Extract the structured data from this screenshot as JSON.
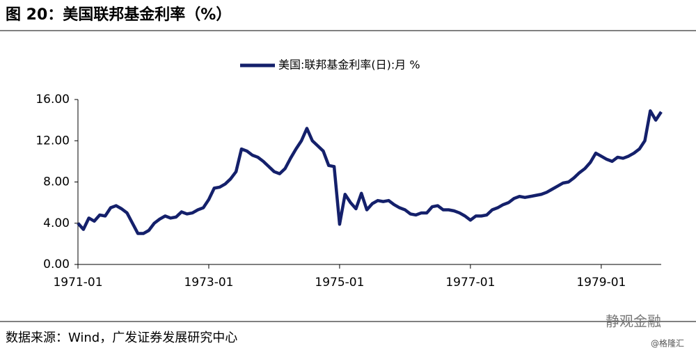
{
  "header": {
    "title": "图 20：美国联邦基金利率（%）"
  },
  "chart_data": {
    "type": "line",
    "x": [
      "1971-01",
      "1971-02",
      "1971-03",
      "1971-04",
      "1971-05",
      "1971-06",
      "1971-07",
      "1971-08",
      "1971-09",
      "1971-10",
      "1971-11",
      "1971-12",
      "1972-01",
      "1972-02",
      "1972-03",
      "1972-04",
      "1972-05",
      "1972-06",
      "1972-07",
      "1972-08",
      "1972-09",
      "1972-10",
      "1972-11",
      "1972-12",
      "1973-01",
      "1973-02",
      "1973-03",
      "1973-04",
      "1973-05",
      "1973-06",
      "1973-07",
      "1973-08",
      "1973-09",
      "1973-10",
      "1973-11",
      "1973-12",
      "1974-01",
      "1974-02",
      "1974-03",
      "1974-04",
      "1974-05",
      "1974-06",
      "1974-07",
      "1974-08",
      "1974-09",
      "1974-10",
      "1974-11",
      "1974-12",
      "1975-01",
      "1975-02",
      "1975-03",
      "1975-04",
      "1975-05",
      "1975-06",
      "1975-07",
      "1975-08",
      "1975-09",
      "1975-10",
      "1975-11",
      "1975-12",
      "1976-01",
      "1976-02",
      "1976-03",
      "1976-04",
      "1976-05",
      "1976-06",
      "1976-07",
      "1976-08",
      "1976-09",
      "1976-10",
      "1976-11",
      "1976-12",
      "1977-01",
      "1977-02",
      "1977-03",
      "1977-04",
      "1977-05",
      "1977-06",
      "1977-07",
      "1977-08",
      "1977-09",
      "1977-10",
      "1977-11",
      "1977-12",
      "1978-01",
      "1978-02",
      "1978-03",
      "1978-04",
      "1978-05",
      "1978-06",
      "1978-07",
      "1978-08",
      "1978-09",
      "1978-10",
      "1978-11",
      "1978-12",
      "1979-01",
      "1979-02",
      "1979-03",
      "1979-04",
      "1979-05",
      "1979-06",
      "1979-07",
      "1979-08",
      "1979-09",
      "1979-10",
      "1979-11",
      "1979-12"
    ],
    "series": [
      {
        "name": "美国:联邦基金利率(日):月 %",
        "color": "#14206b",
        "values": [
          4.0,
          3.4,
          4.5,
          4.2,
          4.8,
          4.7,
          5.5,
          5.7,
          5.4,
          5.0,
          4.0,
          3.0,
          3.0,
          3.3,
          4.0,
          4.4,
          4.7,
          4.5,
          4.6,
          5.1,
          4.9,
          5.0,
          5.3,
          5.5,
          6.3,
          7.4,
          7.5,
          7.8,
          8.3,
          9.0,
          11.2,
          11.0,
          10.6,
          10.4,
          10.0,
          9.5,
          9.0,
          8.8,
          9.3,
          10.3,
          11.2,
          12.0,
          13.2,
          12.0,
          11.5,
          11.0,
          9.6,
          9.5,
          3.9,
          6.8,
          6.0,
          5.4,
          6.9,
          5.3,
          5.9,
          6.2,
          6.1,
          6.2,
          5.8,
          5.5,
          5.3,
          4.9,
          4.8,
          5.0,
          5.0,
          5.6,
          5.7,
          5.3,
          5.3,
          5.2,
          5.0,
          4.7,
          4.3,
          4.7,
          4.7,
          4.8,
          5.3,
          5.5,
          5.8,
          6.0,
          6.4,
          6.6,
          6.5,
          6.6,
          6.7,
          6.8,
          7.0,
          7.3,
          7.6,
          7.9,
          8.0,
          8.4,
          8.9,
          9.3,
          9.9,
          10.8,
          10.5,
          10.2,
          10.0,
          10.4,
          10.3,
          10.5,
          10.8,
          11.2,
          12.0,
          14.9,
          14.0,
          14.8
        ]
      }
    ],
    "xticks": [
      "1971-01",
      "1973-01",
      "1975-01",
      "1977-01",
      "1979-01"
    ],
    "ylim": [
      0,
      16
    ],
    "yticks": [
      {
        "value": 0,
        "label": "0.00"
      },
      {
        "value": 4,
        "label": "4.00"
      },
      {
        "value": 8,
        "label": "8.00"
      },
      {
        "value": 12,
        "label": "12.00"
      },
      {
        "value": 16,
        "label": "16.00"
      }
    ],
    "grid": false,
    "legend": "top"
  },
  "footer": {
    "source": "数据来源：Wind，广发证券发展研究中心",
    "watermark": "静观金融",
    "credit": "@格隆汇"
  }
}
